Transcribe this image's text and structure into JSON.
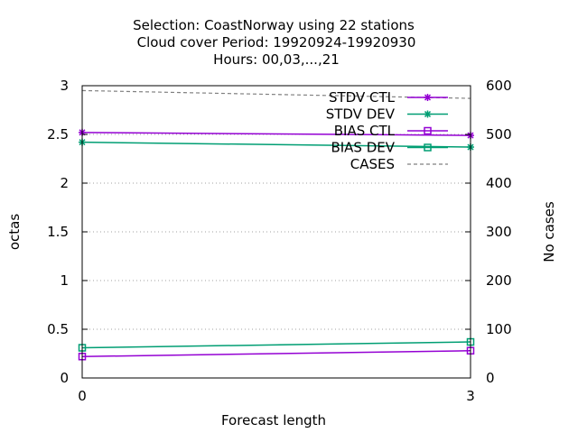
{
  "chart_data": {
    "type": "line",
    "title_lines": [
      "Selection: CoastNorway using    22 stations",
      "Cloud cover   Period: 19920924-19920930",
      "Hours:  00,03,...,21"
    ],
    "xlabel": "Forecast length",
    "ylabel": "octas",
    "y2label": "No cases",
    "x": [
      0,
      3
    ],
    "xlim": [
      0,
      3
    ],
    "ylim": [
      0,
      3
    ],
    "y2lim": [
      0,
      600
    ],
    "x_ticks": [
      "0",
      "3"
    ],
    "y_ticks": [
      "0",
      "0.5",
      "1",
      "1.5",
      "2",
      "2.5",
      "3"
    ],
    "y2_ticks": [
      "0",
      "100",
      "200",
      "300",
      "400",
      "500",
      "600"
    ],
    "grid": true,
    "legend_position": "top-right",
    "series": [
      {
        "name": "STDV CTL",
        "axis": "y",
        "color": "#9400d3",
        "marker": "star",
        "dash": "solid",
        "values": [
          2.52,
          2.49
        ]
      },
      {
        "name": "STDV DEV",
        "axis": "y",
        "color": "#009e73",
        "marker": "star",
        "dash": "solid",
        "values": [
          2.42,
          2.37
        ]
      },
      {
        "name": "BIAS CTL",
        "axis": "y",
        "color": "#9400d3",
        "marker": "square",
        "dash": "solid",
        "values": [
          0.22,
          0.28
        ]
      },
      {
        "name": "BIAS DEV",
        "axis": "y",
        "color": "#009e73",
        "marker": "square",
        "dash": "solid",
        "values": [
          0.31,
          0.37
        ]
      },
      {
        "name": "CASES",
        "axis": "y2",
        "color": "#808080",
        "marker": "none",
        "dash": "dashed",
        "values": [
          590,
          574
        ]
      }
    ]
  }
}
